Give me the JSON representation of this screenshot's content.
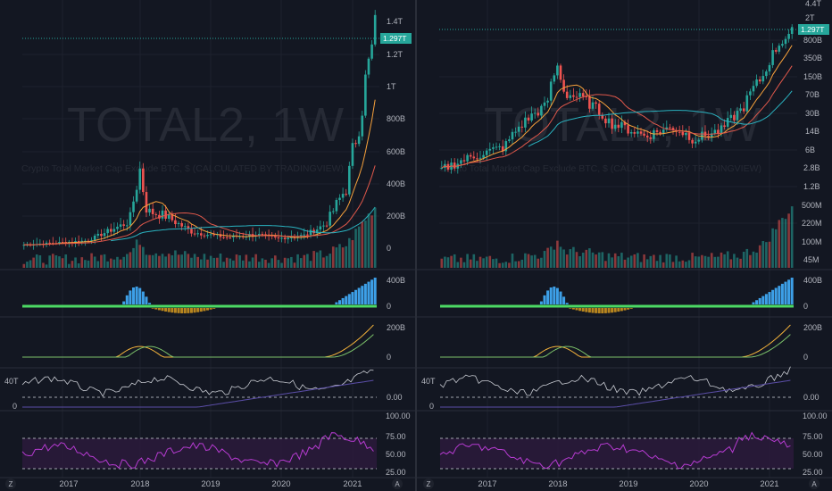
{
  "colors": {
    "background": "#131722",
    "grid": "#1e222d",
    "separator": "#2a2e39",
    "axis_text": "#b2b5be",
    "watermark": "#262a35",
    "candle_up": "#26a69a",
    "candle_down": "#ef5350",
    "ma_fast": "#f7a13b",
    "ma_mid": "#e0584b",
    "ma_slow": "#2ab3c0",
    "price_tag": "#26a69a",
    "hist_pos": "#3da0e8",
    "hist_neg": "#b8861f",
    "zero_line": "#4cd964",
    "macd_line": "#f6b43b",
    "signal_line": "#7cc26a",
    "osc_line": "#c9ccd3",
    "osc_signal": "#5b4ea8",
    "rsi_line": "#b63bd1",
    "rsi_band": "#2a1a3a"
  },
  "charts": [
    {
      "scale": "linear",
      "symbol": "TOTAL2, 1W",
      "description": "Crypto Total Market Cap Exclude BTC, $ (CALCULATED BY TRADINGVIEW)",
      "price_tag": "1.297T",
      "price_axis": [
        "1.4T",
        "1.2T",
        "1T",
        "800B",
        "600B",
        "400B",
        "200B",
        "0"
      ],
      "volume_axis": [],
      "macd_hist_axis": [
        "400B",
        "0"
      ],
      "macd_axis": [
        "200B",
        "0"
      ],
      "osc_axis_left": [
        "40T",
        "0"
      ],
      "osc_axis_right": [
        "0.00"
      ],
      "rsi_axis": [
        "100.00",
        "75.00",
        "50.00",
        "25.00"
      ],
      "time_axis": [
        "2017",
        "2018",
        "2019",
        "2020",
        "2021"
      ],
      "corner_left": "Z",
      "corner_right": "A"
    },
    {
      "scale": "log",
      "symbol": "TOTAL2, 1W",
      "description": "Crypto Total Market Cap Exclude BTC, $ (CALCULATED BY TRADINGVIEW)",
      "price_tag": "1.297T",
      "price_axis": [
        "4.4T",
        "2T",
        "800B",
        "350B",
        "150B",
        "70B",
        "30B",
        "14B",
        "6B",
        "2.8B",
        "1.2B",
        "500M",
        "220M",
        "100M",
        "45M"
      ],
      "volume_axis": [],
      "macd_hist_axis": [
        "400B",
        "0"
      ],
      "macd_axis": [
        "200B",
        "0"
      ],
      "osc_axis_left": [
        "40T",
        "0"
      ],
      "osc_axis_right": [
        "0.00"
      ],
      "rsi_axis": [
        "100.00",
        "75.00",
        "50.00",
        "25.00"
      ],
      "time_axis": [
        "2017",
        "2018",
        "2019",
        "2020",
        "2021"
      ],
      "corner_left": "Z",
      "corner_right": "A"
    }
  ]
}
